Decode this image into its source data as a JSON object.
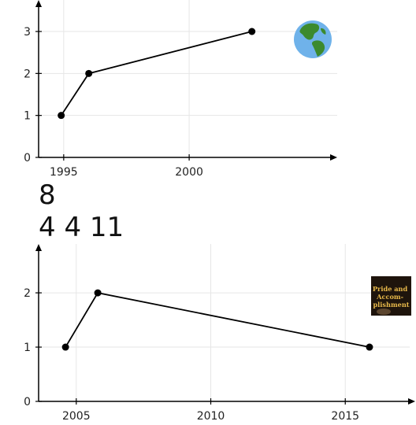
{
  "chart_data": [
    {
      "type": "line",
      "title": "",
      "xlabel": "",
      "ylabel": "",
      "x": [
        1994.9,
        1996.0,
        2002.5
      ],
      "series": [
        {
          "values": [
            1,
            2,
            3
          ]
        }
      ],
      "xlim": [
        1994.0,
        2005.9
      ],
      "ylim": [
        0,
        3.75
      ],
      "xticks": [
        1995,
        2000
      ],
      "yticks": [
        0,
        1,
        2,
        3
      ],
      "grid": true,
      "icon": "globe-americas-icon"
    },
    {
      "type": "line",
      "title": "",
      "xlabel": "",
      "ylabel": "",
      "x": [
        2004.6,
        2005.8,
        2015.9
      ],
      "series": [
        {
          "values": [
            1,
            2,
            1
          ]
        }
      ],
      "xlim": [
        2003.6,
        2017.6
      ],
      "ylim": [
        0,
        2.9
      ],
      "xticks": [
        2005,
        2010,
        2015
      ],
      "yticks": [
        0,
        1,
        2
      ],
      "grid": true,
      "icon": "book-cover-icon"
    }
  ],
  "between_text": {
    "line1": "8",
    "line2": "4 4 11"
  },
  "badge": {
    "title": "Pride and Accom-plishment"
  },
  "colors": {
    "line": "#000000",
    "grid": "#e6e6e6",
    "ocean": "#6fb2ea",
    "land": "#3c8a2e",
    "badge_bg": "#1e140c",
    "badge_text": "#e8b94a"
  }
}
